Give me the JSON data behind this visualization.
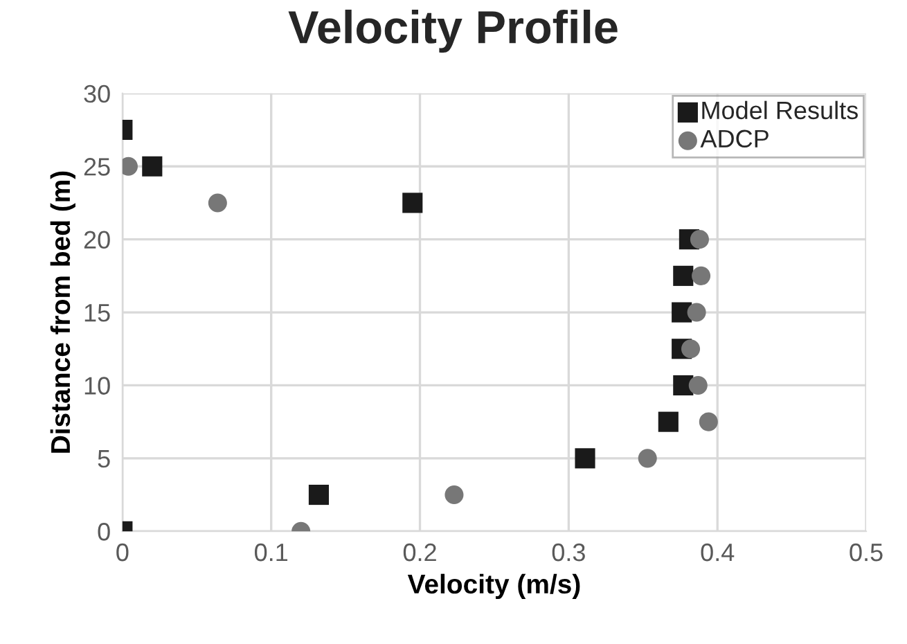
{
  "chart_data": {
    "type": "scatter",
    "title": "Velocity Profile",
    "xlabel": "Velocity (m/s)",
    "ylabel": "Distance from bed (m)",
    "xlim": [
      0,
      0.5
    ],
    "xticks": [
      0,
      0.1,
      0.2,
      0.3,
      0.4,
      0.5
    ],
    "ylim": [
      0,
      30
    ],
    "yticks": [
      0,
      5,
      10,
      15,
      20,
      25,
      30
    ],
    "grid": true,
    "legend": "top right",
    "series": [
      {
        "name": "Model Results",
        "color": "#1a1a1a",
        "marker": "square",
        "x": [
          0,
          0.132,
          0.311,
          0.367,
          0.377,
          0.376,
          0.376,
          0.377,
          0.381,
          0.195,
          0.02,
          0
        ],
        "values": [
          0,
          2.5,
          5,
          7.5,
          10,
          12.5,
          15,
          17.5,
          20,
          22.5,
          25,
          27.5
        ]
      },
      {
        "name": "ADCP",
        "color": "#777777",
        "marker": "circle",
        "x": [
          0.12,
          0.223,
          0.353,
          0.394,
          0.387,
          0.382,
          0.386,
          0.389,
          0.388,
          0.064,
          0.004
        ],
        "values": [
          0,
          2.5,
          5,
          7.5,
          10,
          12.5,
          15,
          17.5,
          20,
          22.5,
          25
        ]
      }
    ]
  }
}
